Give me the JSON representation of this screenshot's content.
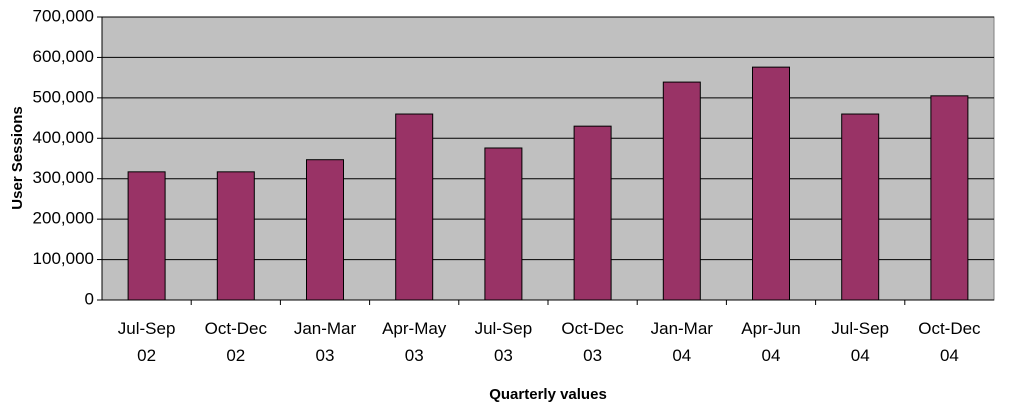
{
  "chart_data": {
    "type": "bar",
    "x_label": "Quarterly values",
    "y_label": "User Sessions",
    "categories": [
      "Jul-Sep 02",
      "Oct-Dec 02",
      "Jan-Mar 03",
      "Apr-May 03",
      "Jul-Sep 03",
      "Oct-Dec 03",
      "Jan-Mar 04",
      "Apr-Jun 04",
      "Jul-Sep 04",
      "Oct-Dec 04"
    ],
    "values": [
      317000,
      317000,
      347000,
      460000,
      376000,
      430000,
      539000,
      576000,
      460000,
      505000
    ],
    "color": "#993366",
    "ylim": [
      0,
      700000
    ],
    "yticks": [
      0,
      {
        "value": 100000,
        "label": "100,000"
      },
      {
        "value": 200000,
        "label": "200,000"
      },
      {
        "value": 300000,
        "label": "300,000"
      },
      {
        "value": 400000,
        "label": "400,000"
      },
      {
        "value": 500000,
        "label": "500,000"
      },
      {
        "value": 600000,
        "label": "600,000"
      },
      {
        "value": 700000,
        "label": "700,000"
      }
    ],
    "grid": true
  }
}
